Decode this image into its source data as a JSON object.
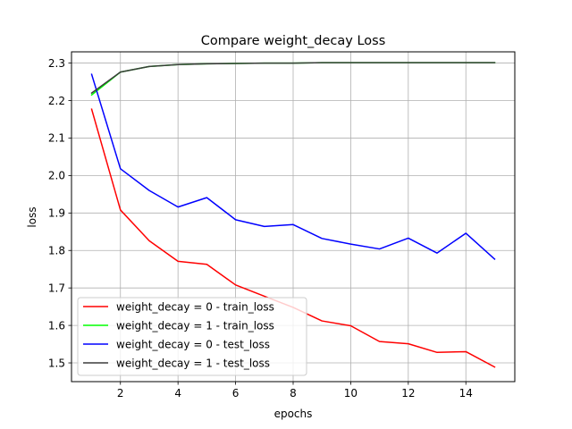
{
  "chart_data": {
    "type": "line",
    "title": "Compare weight_decay Loss",
    "xlabel": "epochs",
    "ylabel": "loss",
    "xlim": [
      0.3,
      15.7
    ],
    "ylim": [
      1.45,
      2.33
    ],
    "x_ticks": [
      2,
      4,
      6,
      8,
      10,
      12,
      14
    ],
    "x_tick_labels": [
      "2",
      "4",
      "6",
      "8",
      "10",
      "12",
      "14"
    ],
    "y_ticks": [
      1.5,
      1.6,
      1.7,
      1.8,
      1.9,
      2.0,
      2.1,
      2.2,
      2.3
    ],
    "y_tick_labels": [
      "1.5",
      "1.6",
      "1.7",
      "1.8",
      "1.9",
      "2.0",
      "2.1",
      "2.2",
      "2.3"
    ],
    "grid": true,
    "legend_position": "lower-left",
    "x": [
      1,
      2,
      3,
      4,
      5,
      6,
      7,
      8,
      9,
      10,
      11,
      12,
      13,
      14,
      15
    ],
    "series": [
      {
        "name": "weight_decay = 0 - train_loss",
        "color": "#ff0000",
        "values": [
          2.177,
          1.908,
          1.826,
          1.771,
          1.763,
          1.708,
          1.678,
          1.648,
          1.612,
          1.599,
          1.557,
          1.551,
          1.528,
          1.53,
          1.489
        ]
      },
      {
        "name": "weight_decay = 1 - train_loss",
        "color": "#00ff00",
        "values": [
          2.215,
          2.276,
          2.291,
          2.296,
          2.298,
          2.299,
          2.3,
          2.3,
          2.301,
          2.301,
          2.301,
          2.301,
          2.301,
          2.301,
          2.301
        ]
      },
      {
        "name": "weight_decay = 0 - test_loss",
        "color": "#0000ff",
        "values": [
          2.27,
          2.018,
          1.96,
          1.916,
          1.941,
          1.882,
          1.864,
          1.869,
          1.832,
          1.817,
          1.804,
          1.833,
          1.793,
          1.846,
          1.777
        ]
      },
      {
        "name": "weight_decay = 1 - test_loss",
        "color": "#3b3b3b",
        "values": [
          2.22,
          2.276,
          2.291,
          2.296,
          2.298,
          2.299,
          2.3,
          2.3,
          2.301,
          2.301,
          2.301,
          2.301,
          2.301,
          2.301,
          2.301
        ]
      }
    ]
  }
}
